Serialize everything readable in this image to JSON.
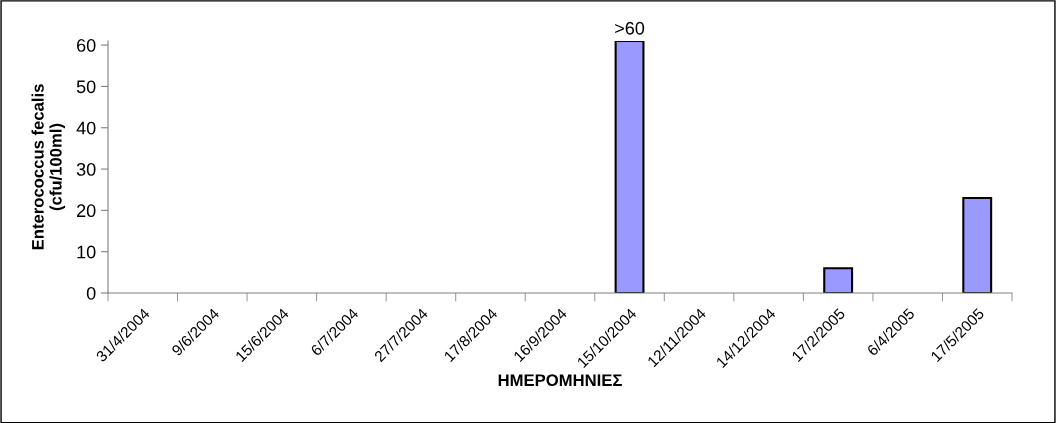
{
  "chart_data": {
    "type": "bar",
    "xlabel": "ΗΜΕΡΟΜΗΝΙΕΣ",
    "ylabel": "Enterococcus fecalis\n(cfu/100ml)",
    "categories": [
      "31/4/2004",
      "9/6/2004",
      "15/6/2004",
      "6/7/2004",
      "27/7/2004",
      "17/8/2004",
      "16/9/2004",
      "15/10/2004",
      "12/11/2004",
      "14/12/2004",
      "17/2/2005",
      "6/4/2005",
      "17/5/2005"
    ],
    "values": [
      0,
      0,
      0,
      0,
      0,
      0,
      0,
      61,
      0,
      0,
      6,
      0,
      23
    ],
    "value_labels": [
      null,
      null,
      null,
      null,
      null,
      null,
      null,
      ">60",
      null,
      null,
      null,
      null,
      null
    ],
    "color": "#9999ff",
    "ylim": [
      0,
      61
    ],
    "yticks": [
      0,
      10,
      20,
      30,
      40,
      50,
      60
    ],
    "grid": false,
    "legend": false
  }
}
